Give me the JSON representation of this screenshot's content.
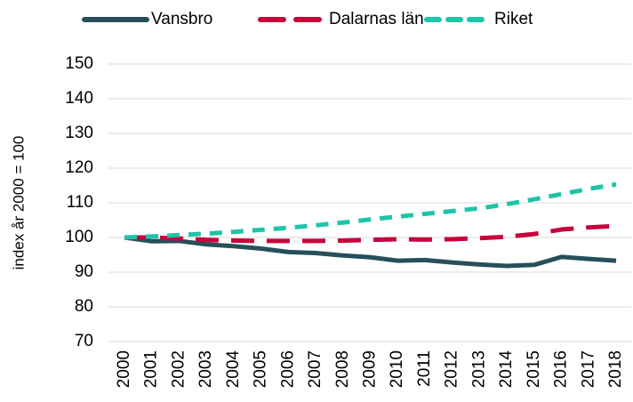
{
  "chart_data": {
    "type": "line",
    "y_label": "index år 2000 = 100",
    "categories": [
      "2000",
      "2001",
      "2002",
      "2003",
      "2004",
      "2005",
      "2006",
      "2007",
      "2008",
      "2009",
      "2010",
      "2011",
      "2012",
      "2013",
      "2014",
      "2015",
      "2016",
      "2017",
      "2018"
    ],
    "series": [
      {
        "name": "Vansbro",
        "color": "#264f5a",
        "dash": "solid",
        "values": [
          100,
          98.9,
          99,
          98,
          97.5,
          96.8,
          95.8,
          95.5,
          94.8,
          94.3,
          93.3,
          93.5,
          92.8,
          92.2,
          91.8,
          92.1,
          94.4,
          93.8,
          93.3
        ]
      },
      {
        "name": "Dalarnas län",
        "color": "#c8003c",
        "dash": "long",
        "values": [
          100,
          100,
          99.7,
          99.3,
          99.1,
          99,
          99,
          99,
          99.1,
          99.3,
          99.5,
          99.4,
          99.5,
          99.8,
          100.2,
          101,
          102.3,
          102.9,
          103.3
        ]
      },
      {
        "name": "Riket",
        "color": "#1ec4a8",
        "dash": "short",
        "values": [
          100,
          100.3,
          100.7,
          101.1,
          101.6,
          102.2,
          102.8,
          103.5,
          104.3,
          105.2,
          106,
          106.8,
          107.6,
          108.4,
          109.6,
          111,
          112.5,
          114,
          115.3
        ]
      }
    ],
    "ylim": [
      70,
      150
    ],
    "yticks": [
      70,
      80,
      90,
      100,
      110,
      120,
      130,
      140,
      150
    ],
    "grid": true,
    "legend": "top"
  }
}
